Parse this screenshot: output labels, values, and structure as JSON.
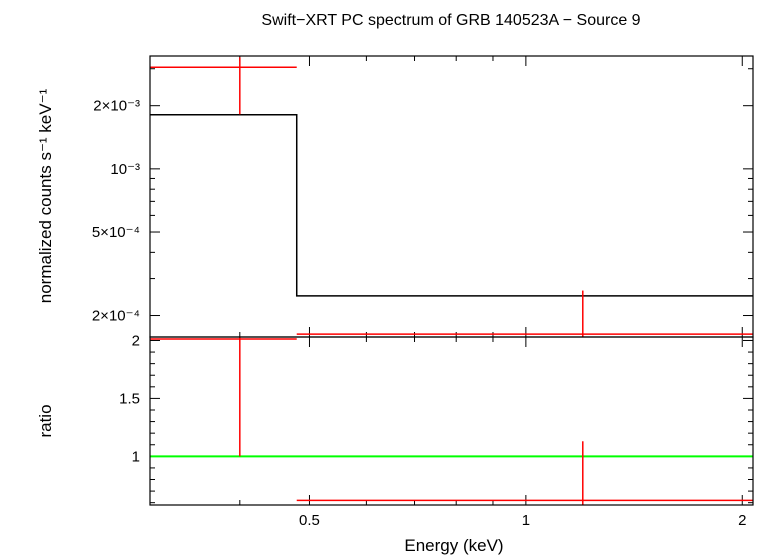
{
  "chart_data": [
    {
      "panel": "spectrum",
      "type": "line",
      "title": "Swift−XRT PC spectrum of GRB 140523A − Source 9",
      "xlabel": "Energy (keV)",
      "ylabel": "normalized counts s⁻¹ keV⁻¹",
      "xscale": "log",
      "yscale": "log",
      "xlim": [
        0.3,
        2.07
      ],
      "ylim": [
        0.000158,
        0.00345
      ],
      "yticks": [
        {
          "value": 0.0002,
          "label": "2×10⁻⁴"
        },
        {
          "value": 0.0005,
          "label": "5×10⁻⁴"
        },
        {
          "value": 0.001,
          "label": "10⁻³"
        },
        {
          "value": 0.002,
          "label": "2×10⁻³"
        }
      ],
      "series": [
        {
          "role": "data",
          "color": "#ff0000",
          "points": [
            {
              "x": 0.4,
              "xlo": 0.3,
              "xhi": 0.48,
              "y": 0.00305,
              "ylo": 0.00182,
              "yhi": 0.0034
            },
            {
              "x": 1.2,
              "xlo": 0.48,
              "xhi": 2.07,
              "y": 0.000163,
              "ylo": 0.000158,
              "yhi": 0.000263
            }
          ]
        },
        {
          "role": "model",
          "color": "#000000",
          "steps": [
            {
              "xlo": 0.3,
              "xhi": 0.48,
              "y": 0.00181
            },
            {
              "xlo": 0.48,
              "xhi": 2.07,
              "y": 0.000248
            }
          ]
        }
      ]
    },
    {
      "panel": "ratio",
      "type": "line",
      "xlabel": "Energy (keV)",
      "ylabel": "ratio",
      "xscale": "log",
      "xlim": [
        0.3,
        2.07
      ],
      "ylim": [
        0.58,
        2.03
      ],
      "xticks": [
        {
          "value": 0.5,
          "label": "0.5"
        },
        {
          "value": 1,
          "label": "1"
        },
        {
          "value": 2,
          "label": "2"
        }
      ],
      "yticks": [
        {
          "value": 1,
          "label": "1"
        },
        {
          "value": 1.5,
          "label": "1.5"
        },
        {
          "value": 2,
          "label": "2"
        }
      ],
      "series": [
        {
          "role": "data",
          "color": "#ff0000",
          "points": [
            {
              "x": 0.4,
              "xlo": 0.3,
              "xhi": 0.48,
              "y": 2.02,
              "ylo": 1.0,
              "yhi": 2.03
            },
            {
              "x": 1.2,
              "xlo": 0.48,
              "xhi": 2.07,
              "y": 0.62,
              "ylo": 0.58,
              "yhi": 1.13
            }
          ]
        },
        {
          "role": "reference",
          "color": "#00ff00",
          "y": 1
        }
      ]
    }
  ]
}
